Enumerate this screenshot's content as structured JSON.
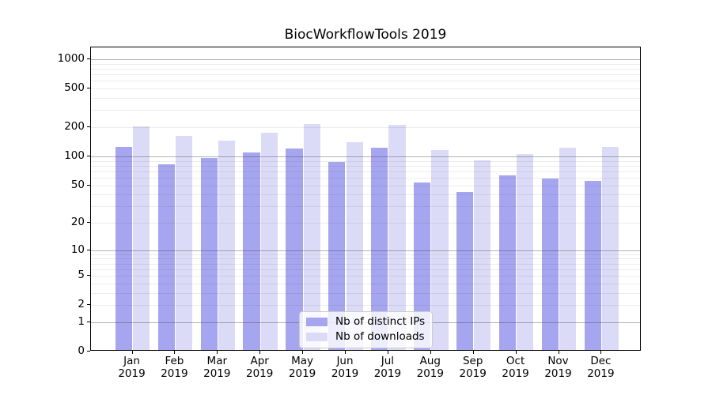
{
  "title": "BiocWorkflowTools 2019",
  "chart_data": {
    "type": "bar",
    "title": "BiocWorkflowTools 2019",
    "months": [
      "Jan",
      "Feb",
      "Mar",
      "Apr",
      "May",
      "Jun",
      "Jul",
      "Aug",
      "Sep",
      "Oct",
      "Nov",
      "Dec"
    ],
    "year": "2019",
    "series": [
      {
        "name": "Nb of distinct IPs",
        "color": "#a5a5f0",
        "values": [
          120,
          79,
          93,
          106,
          116,
          84,
          118,
          51,
          41,
          61,
          57,
          53
        ]
      },
      {
        "name": "Nb of downloads",
        "color": "#dbdbf8",
        "values": [
          196,
          156,
          140,
          168,
          206,
          134,
          205,
          112,
          88,
          102,
          119,
          121
        ]
      }
    ],
    "y_axis": {
      "scale": "log10(value+1)",
      "tick_labels": [
        1000,
        500,
        200,
        100,
        50,
        20,
        10,
        5,
        2,
        1,
        0
      ],
      "major_gridlines": [
        1,
        10,
        100,
        1000
      ],
      "minor_gridlines": [
        2,
        3,
        4,
        5,
        6,
        7,
        8,
        9,
        20,
        30,
        40,
        50,
        60,
        70,
        80,
        90,
        200,
        300,
        400,
        500,
        600,
        700,
        800,
        900
      ],
      "ylim": [
        0,
        1325
      ]
    },
    "legend": {
      "position": "lower center",
      "entries": [
        "Nb of distinct IPs",
        "Nb of downloads"
      ]
    },
    "grid": true
  }
}
